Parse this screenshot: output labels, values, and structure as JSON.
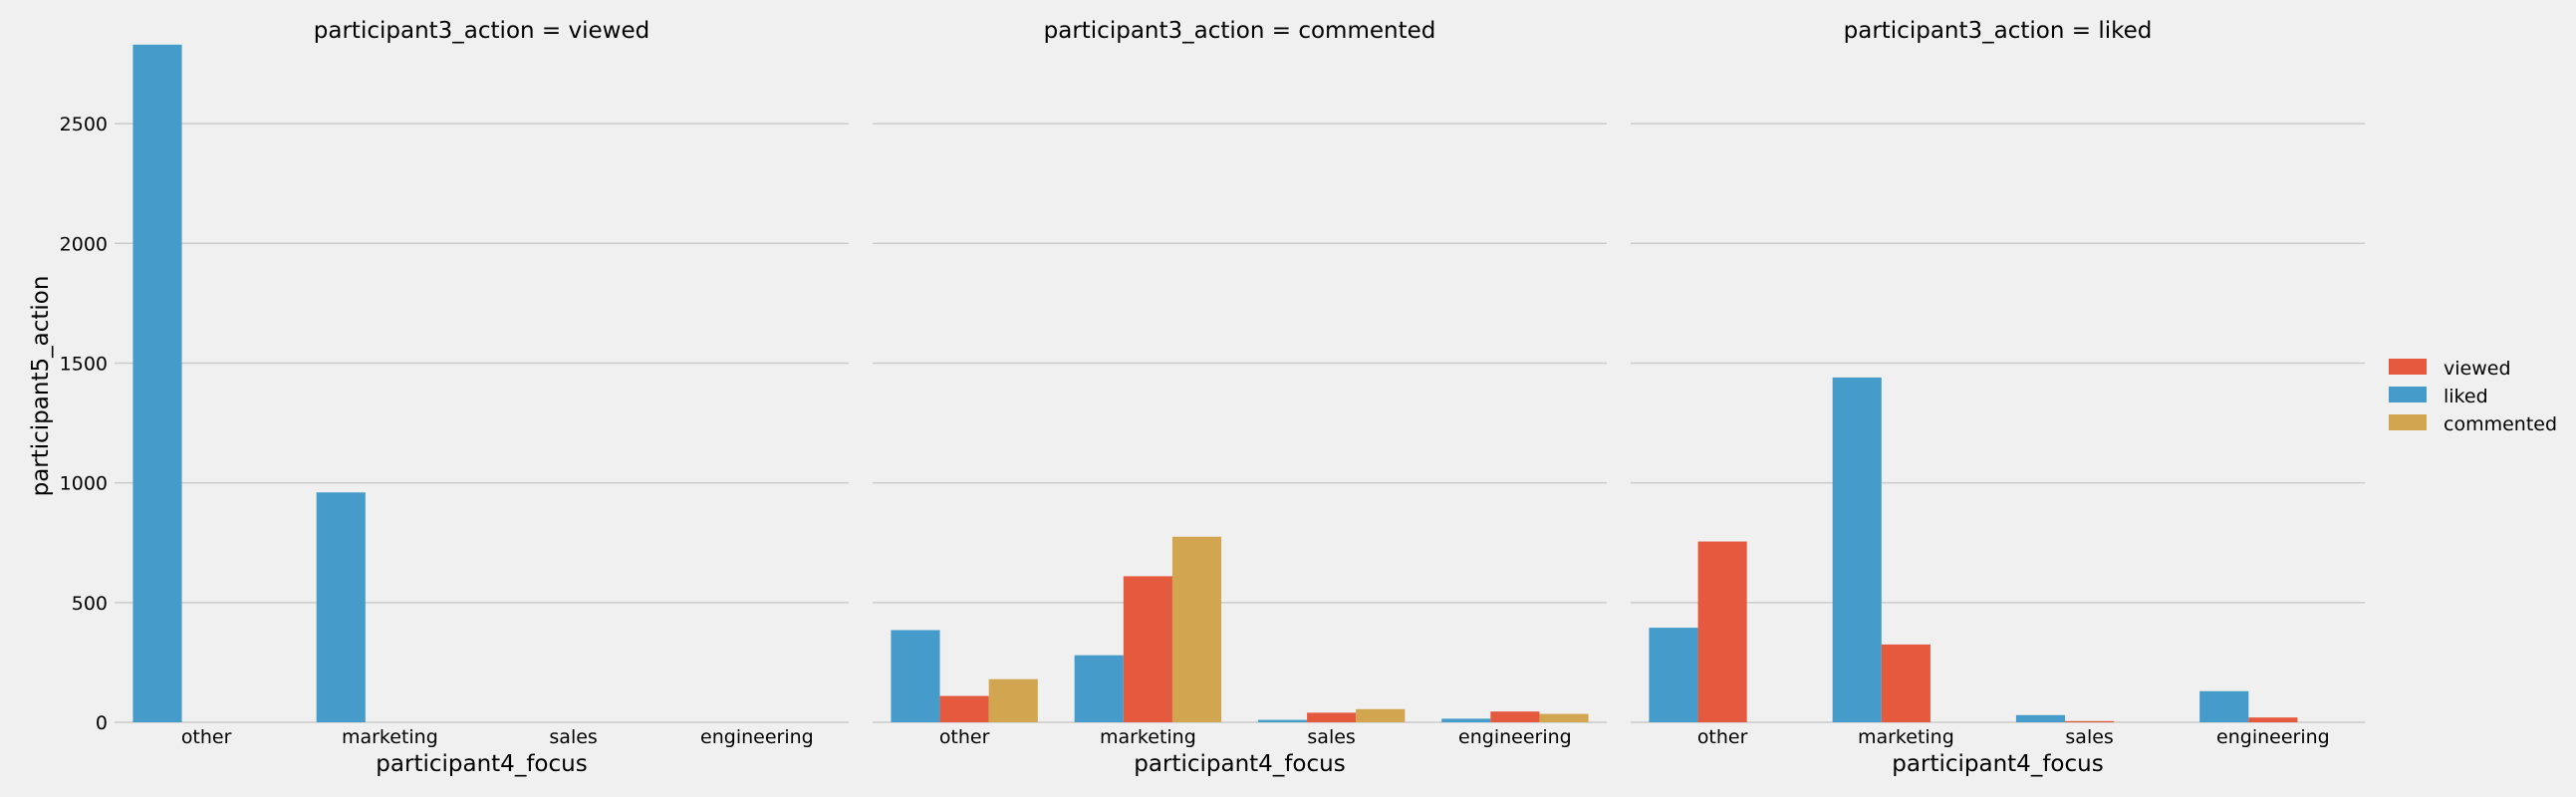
{
  "chart_data": {
    "type": "bar",
    "ylabel": "participant5_action",
    "xlabel": "participant4_focus",
    "categories": [
      "other",
      "marketing",
      "sales",
      "engineering"
    ],
    "ylim": [
      0,
      2850
    ],
    "yticks": [
      0,
      500,
      1000,
      1500,
      2000,
      2500
    ],
    "hue_order": [
      "liked",
      "viewed",
      "commented"
    ],
    "colors": {
      "viewed": "#e5593f",
      "liked": "#459ccb",
      "commented": "#d2a550"
    },
    "legend": {
      "placement": "center-right",
      "entries": [
        "viewed",
        "liked",
        "commented"
      ]
    },
    "grid": "horizontal",
    "panels": [
      {
        "title": "participant3_action = viewed",
        "series": [
          {
            "name": "liked",
            "values": [
              2830,
              960,
              0,
              0
            ]
          }
        ]
      },
      {
        "title": "participant3_action = commented",
        "series": [
          {
            "name": "liked",
            "values": [
              385,
              280,
              10,
              15
            ]
          },
          {
            "name": "viewed",
            "values": [
              110,
              610,
              40,
              45
            ]
          },
          {
            "name": "commented",
            "values": [
              180,
              775,
              55,
              35
            ]
          }
        ]
      },
      {
        "title": "participant3_action = liked",
        "series": [
          {
            "name": "liked",
            "values": [
              395,
              1440,
              30,
              130
            ]
          },
          {
            "name": "viewed",
            "values": [
              755,
              325,
              5,
              20
            ]
          }
        ]
      }
    ]
  }
}
